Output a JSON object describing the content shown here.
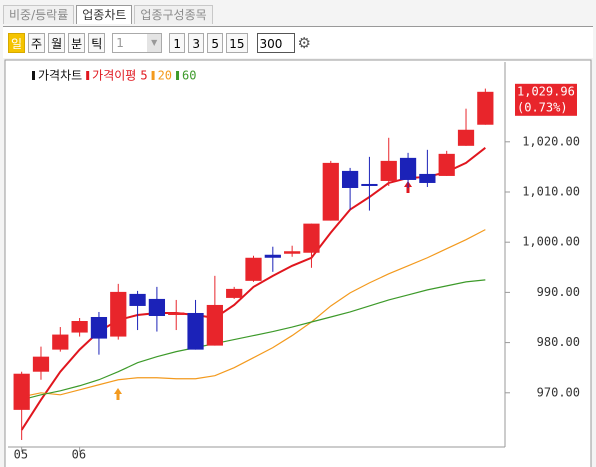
{
  "tabs": [
    "비중/등락률",
    "업종차트",
    "업종구성종목"
  ],
  "toolbar": {
    "periods": [
      "일",
      "주",
      "월",
      "분",
      "틱"
    ],
    "interval": "1",
    "counts": [
      "1",
      "3",
      "5",
      "15"
    ],
    "bars": "300"
  },
  "chart_data": {
    "type": "candlestick",
    "price_label": "가격차트",
    "ma_label": "가격이평",
    "categories": [
      "05",
      null,
      null,
      "06",
      null,
      null,
      null,
      null,
      null,
      null,
      null,
      null,
      null,
      null,
      null,
      null,
      null,
      null,
      null,
      null,
      null,
      null,
      null,
      null,
      null
    ],
    "open": [
      966.6,
      974.2,
      978.6,
      982.0,
      985.1,
      981.2,
      989.7,
      988.7,
      985.5,
      985.9,
      979.4,
      988.9,
      992.3,
      997.5,
      997.7,
      997.9,
      1004.3,
      1014.2,
      1011.6,
      1012.2,
      1016.8,
      1013.6,
      1013.2,
      1019.2,
      1023.4
    ],
    "high": [
      974.2,
      979.2,
      983.1,
      984.9,
      986.1,
      991.7,
      990.3,
      991.1,
      988.5,
      988.5,
      993.3,
      991.1,
      997.3,
      999.1,
      999.3,
      1003.7,
      1016.2,
      1014.8,
      1017.0,
      1020.8,
      1017.8,
      1018.4,
      1018.2,
      1026.6,
      1030.6
    ],
    "low": [
      960.6,
      972.6,
      978.2,
      981.2,
      977.6,
      980.6,
      982.5,
      982.2,
      982.5,
      978.6,
      979.4,
      988.7,
      992.1,
      994.1,
      997.1,
      994.9,
      1004.3,
      1006.5,
      1006.3,
      1011.2,
      1010.8,
      1011.0,
      1013.2,
      1019.2,
      1023.4
    ],
    "close": [
      973.8,
      977.2,
      981.6,
      984.3,
      980.8,
      990.1,
      987.3,
      985.3,
      986.0,
      978.6,
      987.5,
      990.7,
      996.9,
      996.9,
      998.2,
      1003.7,
      1015.8,
      1010.8,
      1011.2,
      1016.2,
      1012.4,
      1011.8,
      1017.6,
      1022.4,
      1029.96
    ],
    "up_color": "#e8252b",
    "down_color": "#1b22b8",
    "series": [
      {
        "name": "5",
        "color": "#e0161e",
        "values": [
          962.6,
          968.6,
          974.2,
          978.6,
          982.2,
          984.5,
          985.5,
          985.9,
          985.9,
          985.5,
          984.9,
          987.5,
          991.1,
          993.3,
          995.3,
          996.9,
          1001.9,
          1006.5,
          1009.0,
          1011.8,
          1012.8,
          1013.0,
          1014.0,
          1015.8,
          1018.8
        ]
      },
      {
        "name": "20",
        "color": "#f39a1e",
        "values": [
          969.2,
          970.0,
          969.6,
          970.6,
          971.6,
          972.6,
          973.0,
          973.0,
          972.8,
          972.8,
          973.4,
          975.0,
          977.0,
          979.0,
          981.4,
          984.1,
          987.3,
          989.9,
          991.9,
          993.7,
          995.3,
          996.9,
          998.7,
          1000.5,
          1002.5
        ]
      },
      {
        "name": "60",
        "color": "#3d9a2a",
        "values": [
          968.6,
          969.6,
          970.4,
          971.4,
          972.6,
          974.2,
          976.0,
          977.2,
          978.2,
          979.0,
          979.8,
          980.6,
          981.4,
          982.2,
          983.1,
          984.1,
          985.1,
          986.1,
          987.3,
          988.5,
          989.5,
          990.5,
          991.3,
          992.1,
          992.5
        ]
      }
    ],
    "ylim": [
      959.6,
      1035.3
    ],
    "yticks": [
      {
        "value": 970,
        "label": "970.00"
      },
      {
        "value": 980,
        "label": "980.00"
      },
      {
        "value": 990,
        "label": "990.00"
      },
      {
        "value": 1000,
        "label": "1,000.00"
      },
      {
        "value": 1010,
        "label": "1,010.00"
      },
      {
        "value": 1020,
        "label": "1,020.00"
      }
    ],
    "last": {
      "value": 1029.96,
      "label": "1,029.96"
    },
    "change": {
      "value": 0.73,
      "label": "(0.73%)"
    }
  }
}
